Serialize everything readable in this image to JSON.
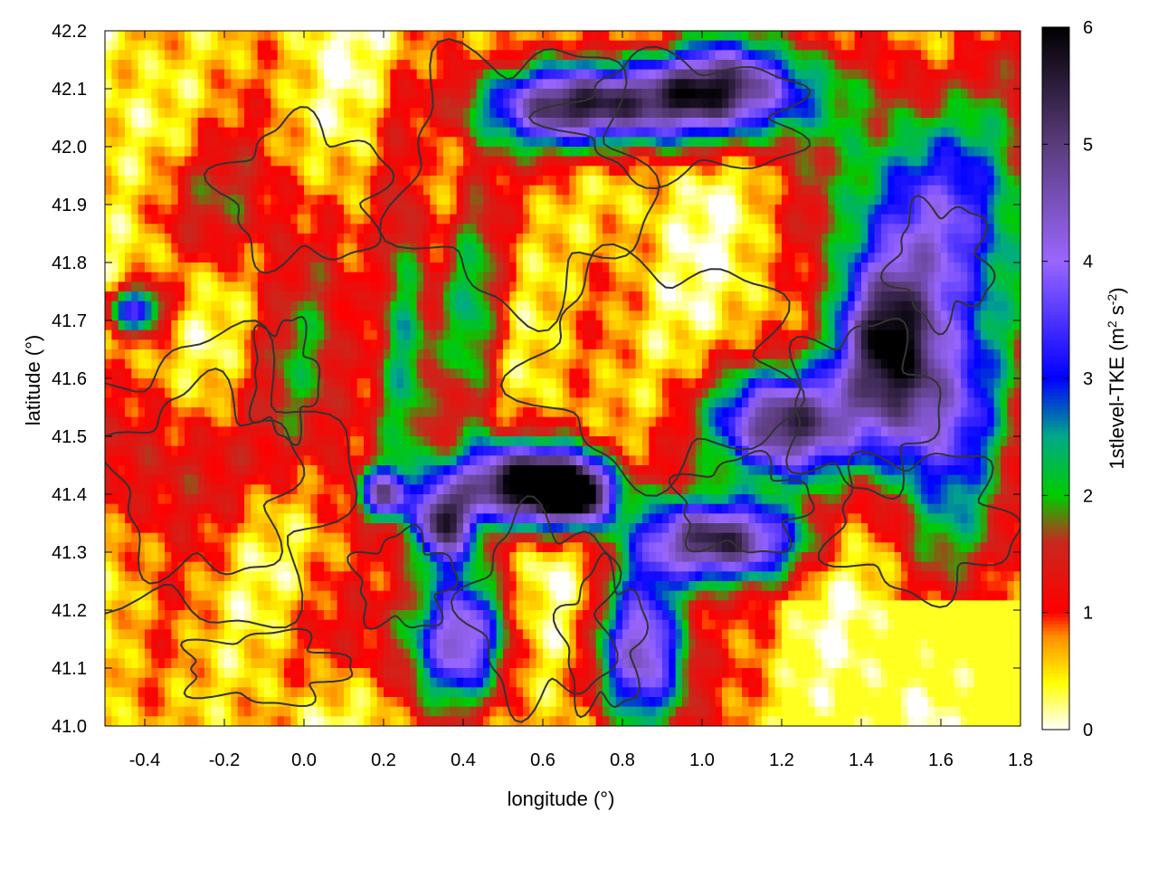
{
  "chart_data": {
    "type": "heatmap",
    "title": "",
    "xlabel": "longitude (°)",
    "ylabel": "latitude (°)",
    "colorbar_label": "1stlevel-TKE (m",
    "colorbar_label_sup1": "2",
    "colorbar_label_mid": " s",
    "colorbar_label_sup2": "-2",
    "colorbar_label_end": ")",
    "xlim": [
      -0.5,
      1.8
    ],
    "ylim": [
      41.0,
      42.2
    ],
    "zlim": [
      0,
      6
    ],
    "x_ticks": [
      -0.4,
      -0.2,
      0.0,
      0.2,
      0.4,
      0.6,
      0.8,
      1.0,
      1.2,
      1.4,
      1.6,
      1.8
    ],
    "x_tick_labels": [
      "-0.4",
      "-0.2",
      "0.0",
      "0.2",
      "0.4",
      "0.6",
      "0.8",
      "1.0",
      "1.2",
      "1.4",
      "1.6",
      "1.8"
    ],
    "y_ticks": [
      41.0,
      41.1,
      41.2,
      41.3,
      41.4,
      41.5,
      41.6,
      41.7,
      41.8,
      41.9,
      42.0,
      42.1,
      42.2
    ],
    "y_tick_labels": [
      "41.0",
      "41.1",
      "41.2",
      "41.3",
      "41.4",
      "41.5",
      "41.6",
      "41.7",
      "41.8",
      "41.9",
      "42.0",
      "42.1",
      "42.2"
    ],
    "z_ticks": [
      0,
      1,
      2,
      3,
      4,
      5,
      6
    ],
    "z_tick_labels": [
      "0",
      "1",
      "2",
      "3",
      "4",
      "5",
      "6"
    ],
    "colormap": [
      {
        "value": 0.0,
        "color": "#ffffff"
      },
      {
        "value": 0.4,
        "color": "#ffff00"
      },
      {
        "value": 0.8,
        "color": "#ff8c00"
      },
      {
        "value": 1.0,
        "color": "#ff0000"
      },
      {
        "value": 1.6,
        "color": "#c8281e"
      },
      {
        "value": 2.0,
        "color": "#00cc00"
      },
      {
        "value": 2.5,
        "color": "#00aa88"
      },
      {
        "value": 3.0,
        "color": "#0000ff"
      },
      {
        "value": 4.0,
        "color": "#9966ff"
      },
      {
        "value": 5.0,
        "color": "#5a3c7a"
      },
      {
        "value": 6.0,
        "color": "#000000"
      }
    ],
    "hotspots": [
      {
        "lon": 0.55,
        "lat": 41.42,
        "sx": 0.12,
        "sy": 0.05,
        "amp": 5.6
      },
      {
        "lon": 0.68,
        "lat": 41.4,
        "sx": 0.07,
        "sy": 0.04,
        "amp": 5.0
      },
      {
        "lon": 1.05,
        "lat": 41.32,
        "sx": 0.14,
        "sy": 0.05,
        "amp": 5.0
      },
      {
        "lon": 1.2,
        "lat": 41.52,
        "sx": 0.12,
        "sy": 0.07,
        "amp": 5.2
      },
      {
        "lon": 0.7,
        "lat": 42.07,
        "sx": 0.18,
        "sy": 0.05,
        "amp": 4.8
      },
      {
        "lon": 1.05,
        "lat": 42.1,
        "sx": 0.16,
        "sy": 0.06,
        "amp": 4.6
      },
      {
        "lon": 1.6,
        "lat": 41.85,
        "sx": 0.18,
        "sy": 0.18,
        "amp": 3.5
      },
      {
        "lon": 1.55,
        "lat": 41.55,
        "sx": 0.14,
        "sy": 0.1,
        "amp": 3.0
      },
      {
        "lon": 0.85,
        "lat": 41.12,
        "sx": 0.08,
        "sy": 0.1,
        "amp": 4.2
      },
      {
        "lon": 0.4,
        "lat": 41.15,
        "sx": 0.08,
        "sy": 0.08,
        "amp": 3.4
      },
      {
        "lon": 0.35,
        "lat": 41.35,
        "sx": 0.05,
        "sy": 0.05,
        "amp": 4.5
      },
      {
        "lon": 0.42,
        "lat": 41.7,
        "sx": 0.06,
        "sy": 0.18,
        "amp": 2.0
      },
      {
        "lon": 0.25,
        "lat": 41.72,
        "sx": 0.05,
        "sy": 0.22,
        "amp": 1.9
      },
      {
        "lon": 1.45,
        "lat": 41.68,
        "sx": 0.08,
        "sy": 0.08,
        "amp": 2.6
      },
      {
        "lon": -0.3,
        "lat": 41.45,
        "sx": 0.14,
        "sy": 0.1,
        "amp": 1.1
      },
      {
        "lon": 0.0,
        "lat": 41.6,
        "sx": 0.1,
        "sy": 0.15,
        "amp": 1.2
      },
      {
        "lon": -0.25,
        "lat": 41.9,
        "sx": 0.15,
        "sy": 0.08,
        "amp": 1.0
      },
      {
        "lon": -0.42,
        "lat": 41.72,
        "sx": 0.05,
        "sy": 0.03,
        "amp": 3.0
      },
      {
        "lon": 0.2,
        "lat": 41.4,
        "sx": 0.04,
        "sy": 0.03,
        "amp": 3.5
      },
      {
        "lon": 1.65,
        "lat": 41.35,
        "sx": 0.12,
        "sy": 0.1,
        "amp": 1.1
      },
      {
        "lon": 0.15,
        "lat": 41.15,
        "sx": 0.15,
        "sy": 0.08,
        "amp": 0.9
      }
    ]
  }
}
